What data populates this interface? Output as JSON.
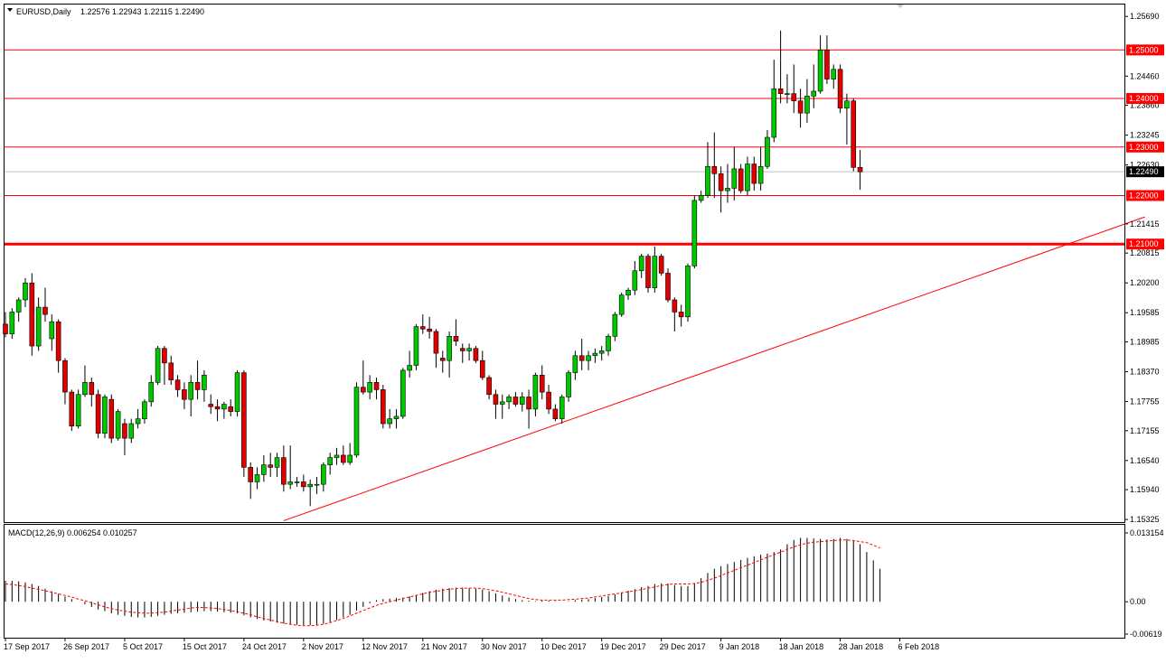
{
  "symbol_header": "EURUSD,Daily",
  "ohlc_header": "1.22576 1.22943 1.22115 1.22490",
  "macd_header": "MACD(12,26,9) 0.006254 0.010257",
  "colors": {
    "background": "#ffffff",
    "frame": "#000000",
    "bull_candle": "#00c800",
    "bear_candle": "#e00000",
    "wick": "#000000",
    "level_lines": "#ff0000",
    "trendline": "#ff0000",
    "current_price_line": "#c0c0c0",
    "macd_signal": "#ff0000",
    "price_tag_bg": "#ff0000",
    "price_tag_text": "#ffffff",
    "current_tag_bg": "#000000"
  },
  "chart_data": [
    {
      "type": "candlestick",
      "symbol": "EURUSD",
      "timeframe": "Daily",
      "ylim": [
        1.1529,
        1.2575
      ],
      "price_axis_ticks": [
        "1.25690",
        "1.24460",
        "1.23860",
        "1.23245",
        "1.22630",
        "1.21415",
        "1.20815",
        "1.20200",
        "1.19585",
        "1.18985",
        "1.18370",
        "1.17755",
        "1.17155",
        "1.16540",
        "1.15940",
        "1.15325"
      ],
      "date_axis_labels": [
        "17 Sep 2017",
        "26 Sep 2017",
        "5 Oct 2017",
        "15 Oct 2017",
        "24 Oct 2017",
        "2 Nov 2017",
        "12 Nov 2017",
        "21 Nov 2017",
        "30 Nov 2017",
        "10 Dec 2017",
        "19 Dec 2017",
        "29 Dec 2017",
        "9 Jan 2018",
        "18 Jan 2018",
        "28 Jan 2018",
        "6 Feb 2018"
      ],
      "date_axis_label_bars": [
        0,
        9,
        18,
        27,
        36,
        45,
        54,
        63,
        72,
        81,
        90,
        99,
        108,
        117,
        126,
        135
      ],
      "horizontal_levels": [
        1.25,
        1.24,
        1.23,
        1.22,
        1.21
      ],
      "level_labels": [
        "1.25000",
        "1.24000",
        "1.23000",
        "1.22000",
        "1.21000"
      ],
      "current_price": 1.2249,
      "current_price_label": "1.22490",
      "trendline": {
        "from": {
          "bar": 42,
          "price": 1.153
        },
        "to": {
          "bar": 172,
          "price": 1.2156
        }
      },
      "candles": [
        [
          1.1935,
          1.196,
          1.1908,
          1.1915
        ],
        [
          1.1915,
          1.1968,
          1.1905,
          1.196
        ],
        [
          1.196,
          1.199,
          1.194,
          1.1985
        ],
        [
          1.1985,
          1.203,
          1.197,
          1.202
        ],
        [
          1.202,
          1.204,
          1.187,
          1.189
        ],
        [
          1.189,
          1.199,
          1.188,
          1.197
        ],
        [
          1.197,
          1.201,
          1.194,
          1.1955
        ],
        [
          1.1905,
          1.1955,
          1.188,
          1.194
        ],
        [
          1.194,
          1.1945,
          1.1835,
          1.186
        ],
        [
          1.186,
          1.1865,
          1.177,
          1.1795
        ],
        [
          1.1795,
          1.18,
          1.1715,
          1.1725
        ],
        [
          1.1725,
          1.18,
          1.172,
          1.179
        ],
        [
          1.179,
          1.185,
          1.1785,
          1.1815
        ],
        [
          1.1815,
          1.1825,
          1.1765,
          1.179
        ],
        [
          1.179,
          1.18,
          1.17,
          1.171
        ],
        [
          1.171,
          1.179,
          1.17,
          1.1785
        ],
        [
          1.178,
          1.179,
          1.169,
          1.17
        ],
        [
          1.17,
          1.176,
          1.1695,
          1.1755
        ],
        [
          1.173,
          1.174,
          1.1665,
          1.17
        ],
        [
          1.17,
          1.174,
          1.169,
          1.173
        ],
        [
          1.173,
          1.176,
          1.172,
          1.174
        ],
        [
          1.174,
          1.178,
          1.173,
          1.1775
        ],
        [
          1.1775,
          1.183,
          1.1765,
          1.1815
        ],
        [
          1.1815,
          1.189,
          1.181,
          1.1885
        ],
        [
          1.1885,
          1.189,
          1.181,
          1.1855
        ],
        [
          1.1855,
          1.187,
          1.181,
          1.182
        ],
        [
          1.182,
          1.183,
          1.1785,
          1.18
        ],
        [
          1.18,
          1.1815,
          1.176,
          1.178
        ],
        [
          1.178,
          1.183,
          1.1745,
          1.1815
        ],
        [
          1.1815,
          1.186,
          1.178,
          1.18
        ],
        [
          1.18,
          1.184,
          1.1775,
          1.183
        ],
        [
          1.177,
          1.179,
          1.175,
          1.1765
        ],
        [
          1.1765,
          1.178,
          1.1735,
          1.176
        ],
        [
          1.176,
          1.1775,
          1.174,
          1.177
        ],
        [
          1.1765,
          1.178,
          1.1745,
          1.1755
        ],
        [
          1.1755,
          1.184,
          1.1745,
          1.1835
        ],
        [
          1.1835,
          1.184,
          1.162,
          1.164
        ],
        [
          1.164,
          1.165,
          1.1575,
          1.161
        ],
        [
          1.161,
          1.164,
          1.1595,
          1.1625
        ],
        [
          1.1625,
          1.1665,
          1.161,
          1.1645
        ],
        [
          1.1645,
          1.167,
          1.162,
          1.164
        ],
        [
          1.164,
          1.167,
          1.162,
          1.166
        ],
        [
          1.166,
          1.1685,
          1.159,
          1.1605
        ],
        [
          1.1605,
          1.1685,
          1.1595,
          1.161
        ],
        [
          1.161,
          1.162,
          1.16,
          1.161
        ],
        [
          1.161,
          1.1625,
          1.159,
          1.16
        ],
        [
          1.16,
          1.1615,
          1.156,
          1.1605
        ],
        [
          1.1605,
          1.162,
          1.1585,
          1.1605
        ],
        [
          1.1605,
          1.165,
          1.159,
          1.1645
        ],
        [
          1.1645,
          1.167,
          1.1625,
          1.166
        ],
        [
          1.166,
          1.168,
          1.1645,
          1.1665
        ],
        [
          1.1665,
          1.1685,
          1.1645,
          1.165
        ],
        [
          1.165,
          1.169,
          1.1645,
          1.1665
        ],
        [
          1.1665,
          1.1815,
          1.166,
          1.1805
        ],
        [
          1.1805,
          1.186,
          1.179,
          1.1795
        ],
        [
          1.1795,
          1.183,
          1.178,
          1.1815
        ],
        [
          1.1815,
          1.1825,
          1.178,
          1.18
        ],
        [
          1.18,
          1.181,
          1.172,
          1.173
        ],
        [
          1.173,
          1.176,
          1.172,
          1.174
        ],
        [
          1.174,
          1.176,
          1.172,
          1.1745
        ],
        [
          1.1745,
          1.1845,
          1.174,
          1.184
        ],
        [
          1.184,
          1.188,
          1.1825,
          1.185
        ],
        [
          1.185,
          1.1935,
          1.184,
          1.193
        ],
        [
          1.193,
          1.1955,
          1.1915,
          1.1925
        ],
        [
          1.1925,
          1.195,
          1.1905,
          1.192
        ],
        [
          1.192,
          1.1925,
          1.1845,
          1.1875
        ],
        [
          1.1865,
          1.188,
          1.1835,
          1.186
        ],
        [
          1.186,
          1.192,
          1.1825,
          1.191
        ],
        [
          1.191,
          1.1945,
          1.189,
          1.19
        ],
        [
          1.1885,
          1.1895,
          1.1855,
          1.188
        ],
        [
          1.188,
          1.1895,
          1.186,
          1.1885
        ],
        [
          1.1885,
          1.189,
          1.1855,
          1.186
        ],
        [
          1.186,
          1.188,
          1.182,
          1.1825
        ],
        [
          1.1825,
          1.183,
          1.178,
          1.179
        ],
        [
          1.179,
          1.18,
          1.174,
          1.177
        ],
        [
          1.177,
          1.179,
          1.174,
          1.1775
        ],
        [
          1.1775,
          1.179,
          1.176,
          1.1785
        ],
        [
          1.1785,
          1.1795,
          1.1765,
          1.177
        ],
        [
          1.177,
          1.1795,
          1.1755,
          1.1785
        ],
        [
          1.1785,
          1.18,
          1.172,
          1.176
        ],
        [
          1.176,
          1.1835,
          1.1745,
          1.183
        ],
        [
          1.183,
          1.185,
          1.178,
          1.1795
        ],
        [
          1.1795,
          1.181,
          1.175,
          1.176
        ],
        [
          1.176,
          1.177,
          1.1735,
          1.174
        ],
        [
          1.174,
          1.179,
          1.173,
          1.1785
        ],
        [
          1.1785,
          1.184,
          1.1775,
          1.1835
        ],
        [
          1.1835,
          1.188,
          1.182,
          1.187
        ],
        [
          1.187,
          1.1905,
          1.184,
          1.186
        ],
        [
          1.186,
          1.188,
          1.184,
          1.187
        ],
        [
          1.187,
          1.1885,
          1.1855,
          1.1875
        ],
        [
          1.1875,
          1.189,
          1.186,
          1.188
        ],
        [
          1.188,
          1.1915,
          1.187,
          1.191
        ],
        [
          1.191,
          1.196,
          1.19,
          1.1955
        ],
        [
          1.1955,
          1.2,
          1.195,
          1.1995
        ],
        [
          1.1995,
          1.201,
          1.1985,
          1.2005
        ],
        [
          1.2005,
          1.2065,
          1.1995,
          1.2045
        ],
        [
          1.2045,
          1.208,
          1.203,
          1.2075
        ],
        [
          1.2075,
          1.208,
          1.2,
          1.201
        ],
        [
          1.201,
          1.2095,
          1.2,
          1.2075
        ],
        [
          1.2075,
          1.208,
          1.2035,
          1.204
        ],
        [
          1.204,
          1.205,
          1.198,
          1.1985
        ],
        [
          1.1985,
          1.199,
          1.192,
          1.196
        ],
        [
          1.196,
          1.1975,
          1.193,
          1.195
        ],
        [
          1.195,
          1.206,
          1.194,
          1.2055
        ],
        [
          1.2055,
          1.22,
          1.205,
          1.219
        ],
        [
          1.219,
          1.221,
          1.2185,
          1.22
        ],
        [
          1.22,
          1.231,
          1.2195,
          1.226
        ],
        [
          1.226,
          1.233,
          1.2195,
          1.2245
        ],
        [
          1.2245,
          1.226,
          1.2165,
          1.221
        ],
        [
          1.221,
          1.2265,
          1.2185,
          1.2215
        ],
        [
          1.2215,
          1.23,
          1.219,
          1.2255
        ],
        [
          1.2255,
          1.2265,
          1.2205,
          1.221
        ],
        [
          1.221,
          1.228,
          1.22,
          1.2265
        ],
        [
          1.2265,
          1.228,
          1.221,
          1.2225
        ],
        [
          1.2225,
          1.23,
          1.221,
          1.226
        ],
        [
          1.226,
          1.2335,
          1.2255,
          1.232
        ],
        [
          1.232,
          1.248,
          1.231,
          1.242
        ],
        [
          1.242,
          1.254,
          1.239,
          1.241
        ],
        [
          1.241,
          1.245,
          1.239,
          1.241
        ],
        [
          1.241,
          1.247,
          1.237,
          1.2395
        ],
        [
          1.2395,
          1.242,
          1.234,
          1.237
        ],
        [
          1.237,
          1.244,
          1.235,
          1.2405
        ],
        [
          1.2405,
          1.247,
          1.238,
          1.2415
        ],
        [
          1.2415,
          1.253,
          1.241,
          1.25
        ],
        [
          1.25,
          1.253,
          1.243,
          1.244
        ],
        [
          1.244,
          1.247,
          1.242,
          1.246
        ],
        [
          1.246,
          1.247,
          1.237,
          1.238
        ],
        [
          1.238,
          1.241,
          1.2305,
          1.2395
        ],
        [
          1.2395,
          1.24,
          1.225,
          1.2258
        ],
        [
          1.2258,
          1.2294,
          1.2212,
          1.2249
        ]
      ]
    },
    {
      "type": "histogram_with_signal",
      "title": "MACD(12,26,9)",
      "main": 0.006254,
      "signal_value": 0.010257,
      "ylim": [
        -0.00619,
        0.013154
      ],
      "axis_ticks": [
        "0.013154",
        "0.00",
        "-0.00619"
      ],
      "histogram": [
        0.004,
        0.004,
        0.0039,
        0.0037,
        0.0034,
        0.003,
        0.0025,
        0.002,
        0.0015,
        0.001,
        0.0005,
        0.0,
        -0.0005,
        -0.001,
        -0.0015,
        -0.0018,
        -0.0022,
        -0.0025,
        -0.0027,
        -0.0029,
        -0.003,
        -0.003,
        -0.0029,
        -0.0027,
        -0.0025,
        -0.0023,
        -0.0022,
        -0.0021,
        -0.002,
        -0.0019,
        -0.0018,
        -0.0018,
        -0.0019,
        -0.002,
        -0.0021,
        -0.0022,
        -0.0026,
        -0.003,
        -0.0033,
        -0.0036,
        -0.0038,
        -0.004,
        -0.0042,
        -0.0043,
        -0.0044,
        -0.0045,
        -0.0045,
        -0.0044,
        -0.0042,
        -0.0039,
        -0.0035,
        -0.003,
        -0.0025,
        -0.0017,
        -0.001,
        -0.0003,
        0.0003,
        0.0005,
        0.0006,
        0.0007,
        0.0008,
        0.001,
        0.0013,
        0.0017,
        0.002,
        0.0023,
        0.0025,
        0.0026,
        0.0027,
        0.0027,
        0.0026,
        0.0025,
        0.0023,
        0.002,
        0.0016,
        0.0012,
        0.0008,
        0.0005,
        0.0003,
        0.0002,
        0.0001,
        0.0002,
        0.0002,
        0.0001,
        0.0,
        0.0001,
        0.0003,
        0.0004,
        0.0005,
        0.0007,
        0.0009,
        0.0011,
        0.0014,
        0.0017,
        0.0021,
        0.0024,
        0.0028,
        0.003,
        0.0034,
        0.0035,
        0.0035,
        0.0032,
        0.003,
        0.003,
        0.0035,
        0.0045,
        0.0055,
        0.0063,
        0.0068,
        0.0072,
        0.0076,
        0.008,
        0.0084,
        0.0087,
        0.009,
        0.0092,
        0.0095,
        0.01,
        0.011,
        0.0118,
        0.0122,
        0.0122,
        0.0121,
        0.012,
        0.0119,
        0.012,
        0.0122,
        0.012,
        0.0116,
        0.011,
        0.0095,
        0.0079,
        0.0063
      ],
      "signal": [
        0.0034,
        0.0033,
        0.0031,
        0.0029,
        0.0026,
        0.0024,
        0.0021,
        0.0018,
        0.0015,
        0.0012,
        0.0009,
        0.0005,
        0.0002,
        -0.0002,
        -0.0006,
        -0.001,
        -0.0013,
        -0.0016,
        -0.0018,
        -0.002,
        -0.0021,
        -0.0022,
        -0.0022,
        -0.0021,
        -0.002,
        -0.0018,
        -0.0016,
        -0.0014,
        -0.0012,
        -0.0011,
        -0.0011,
        -0.0012,
        -0.0013,
        -0.0015,
        -0.0017,
        -0.0019,
        -0.0022,
        -0.0025,
        -0.0029,
        -0.0032,
        -0.0035,
        -0.0038,
        -0.0041,
        -0.0043,
        -0.0045,
        -0.0046,
        -0.0046,
        -0.0045,
        -0.0043,
        -0.004,
        -0.0036,
        -0.0032,
        -0.0027,
        -0.0022,
        -0.0017,
        -0.0012,
        -0.0007,
        -0.0003,
        0.0,
        0.0003,
        0.0006,
        0.0009,
        0.0012,
        0.0015,
        0.0018,
        0.002,
        0.0022,
        0.0024,
        0.0025,
        0.0026,
        0.0026,
        0.0026,
        0.0025,
        0.0023,
        0.0021,
        0.0018,
        0.0015,
        0.0012,
        0.0009,
        0.0006,
        0.0004,
        0.0003,
        0.0003,
        0.0003,
        0.0003,
        0.0004,
        0.0005,
        0.0006,
        0.0007,
        0.0009,
        0.0011,
        0.0013,
        0.0015,
        0.0017,
        0.0019,
        0.0021,
        0.0023,
        0.0026,
        0.0028,
        0.0031,
        0.0033,
        0.0034,
        0.0034,
        0.0034,
        0.0035,
        0.0037,
        0.0041,
        0.0045,
        0.005,
        0.0055,
        0.006,
        0.0065,
        0.007,
        0.0075,
        0.008,
        0.0085,
        0.009,
        0.0095,
        0.01,
        0.0105,
        0.0109,
        0.0112,
        0.0114,
        0.0115,
        0.0116,
        0.0117,
        0.0118,
        0.0118,
        0.0117,
        0.0115,
        0.0113,
        0.0108,
        0.0103
      ]
    }
  ]
}
